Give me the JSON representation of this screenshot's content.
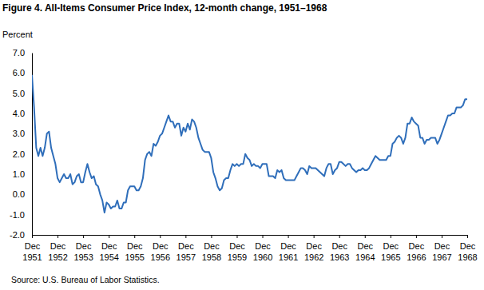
{
  "chart_data": {
    "type": "line",
    "title": "Figure 4. All-Items Consumer Price Index, 12-month change, 1951–1968",
    "y_label": "Percent",
    "source": "Source: U.S. Bureau of Labor Statistics.",
    "color": "#2f6eba",
    "grid": false,
    "ylim": [
      -2,
      7
    ],
    "yticks": [
      {
        "value": -2,
        "label": "-2.0"
      },
      {
        "value": -1,
        "label": "-1.0"
      },
      {
        "value": 0,
        "label": "0.0"
      },
      {
        "value": 1,
        "label": "1.0"
      },
      {
        "value": 2,
        "label": "2.0"
      },
      {
        "value": 3,
        "label": "3.0"
      },
      {
        "value": 4,
        "label": "4.0"
      },
      {
        "value": 5,
        "label": "5.0"
      },
      {
        "value": 6,
        "label": "6.0"
      },
      {
        "value": 7,
        "label": "7.0"
      }
    ],
    "categories": [
      "Dec 1951",
      null,
      null,
      null,
      null,
      null,
      null,
      null,
      null,
      null,
      null,
      null,
      "Dec 1952",
      null,
      null,
      null,
      null,
      null,
      null,
      null,
      null,
      null,
      null,
      null,
      "Dec 1953",
      null,
      null,
      null,
      null,
      null,
      null,
      null,
      null,
      null,
      null,
      null,
      "Dec 1954",
      null,
      null,
      null,
      null,
      null,
      null,
      null,
      null,
      null,
      null,
      null,
      "Dec 1955",
      null,
      null,
      null,
      null,
      null,
      null,
      null,
      null,
      null,
      null,
      null,
      "Dec 1956",
      null,
      null,
      null,
      null,
      null,
      null,
      null,
      null,
      null,
      null,
      null,
      "Dec 1957",
      null,
      null,
      null,
      null,
      null,
      null,
      null,
      null,
      null,
      null,
      null,
      "Dec 1958",
      null,
      null,
      null,
      null,
      null,
      null,
      null,
      null,
      null,
      null,
      null,
      "Dec 1959",
      null,
      null,
      null,
      null,
      null,
      null,
      null,
      null,
      null,
      null,
      null,
      "Dec 1960",
      null,
      null,
      null,
      null,
      null,
      null,
      null,
      null,
      null,
      null,
      null,
      "Dec 1961",
      null,
      null,
      null,
      null,
      null,
      null,
      null,
      null,
      null,
      null,
      null,
      "Dec 1962",
      null,
      null,
      null,
      null,
      null,
      null,
      null,
      null,
      null,
      null,
      null,
      "Dec 1963",
      null,
      null,
      null,
      null,
      null,
      null,
      null,
      null,
      null,
      null,
      null,
      "Dec 1964",
      null,
      null,
      null,
      null,
      null,
      null,
      null,
      null,
      null,
      null,
      null,
      "Dec 1965",
      null,
      null,
      null,
      null,
      null,
      null,
      null,
      null,
      null,
      null,
      null,
      "Dec 1966",
      null,
      null,
      null,
      null,
      null,
      null,
      null,
      null,
      null,
      null,
      null,
      "Dec 1967",
      null,
      null,
      null,
      null,
      null,
      null,
      null,
      null,
      null,
      null,
      null,
      "Dec 1968"
    ],
    "values": [
      5.9,
      4.3,
      2.3,
      1.9,
      2.3,
      1.9,
      2.3,
      3.0,
      3.1,
      2.3,
      1.9,
      1.5,
      0.8,
      0.6,
      0.8,
      1.0,
      0.8,
      0.8,
      1.0,
      0.5,
      0.6,
      0.9,
      1.0,
      0.6,
      0.6,
      1.1,
      1.5,
      1.1,
      0.8,
      0.9,
      0.5,
      0.4,
      0.0,
      -0.3,
      -0.9,
      -0.4,
      -0.5,
      -0.7,
      -0.6,
      -0.6,
      -0.3,
      -0.7,
      -0.7,
      -0.4,
      -0.4,
      0.2,
      0.4,
      0.4,
      0.4,
      0.2,
      0.2,
      0.4,
      0.8,
      1.7,
      2.0,
      2.1,
      1.9,
      2.5,
      2.4,
      2.6,
      2.9,
      3.0,
      3.3,
      3.6,
      3.9,
      3.6,
      3.6,
      3.3,
      3.5,
      3.5,
      2.9,
      3.3,
      3.1,
      3.5,
      3.2,
      3.7,
      3.6,
      3.3,
      2.8,
      2.5,
      2.2,
      2.1,
      2.1,
      2.1,
      1.8,
      1.1,
      0.8,
      0.4,
      0.2,
      0.3,
      0.7,
      0.8,
      0.8,
      1.2,
      1.5,
      1.4,
      1.5,
      1.4,
      1.5,
      1.5,
      2.0,
      1.8,
      1.7,
      1.4,
      1.5,
      1.4,
      1.4,
      1.3,
      1.5,
      1.5,
      1.5,
      0.9,
      0.9,
      0.9,
      0.8,
      1.2,
      1.1,
      1.2,
      0.8,
      0.7,
      0.7,
      0.7,
      0.7,
      0.7,
      0.9,
      1.1,
      1.3,
      1.3,
      1.2,
      1.0,
      1.4,
      1.3,
      1.3,
      1.3,
      1.2,
      1.1,
      1.0,
      0.9,
      1.3,
      1.5,
      1.5,
      1.0,
      1.2,
      1.3,
      1.6,
      1.6,
      1.5,
      1.4,
      1.5,
      1.5,
      1.3,
      1.2,
      1.1,
      1.2,
      1.2,
      1.3,
      1.2,
      1.2,
      1.3,
      1.5,
      1.7,
      1.9,
      1.8,
      1.7,
      1.7,
      1.7,
      1.7,
      1.9,
      1.9,
      2.5,
      2.6,
      2.8,
      2.9,
      2.8,
      2.5,
      2.8,
      3.5,
      3.5,
      3.8,
      3.6,
      3.5,
      3.4,
      2.8,
      2.8,
      2.5,
      2.7,
      2.7,
      2.8,
      2.8,
      2.8,
      2.5,
      2.7,
      3.0,
      3.3,
      3.6,
      3.9,
      3.9,
      4.0,
      4.0,
      4.3,
      4.3,
      4.3,
      4.4,
      4.7,
      4.7
    ]
  }
}
